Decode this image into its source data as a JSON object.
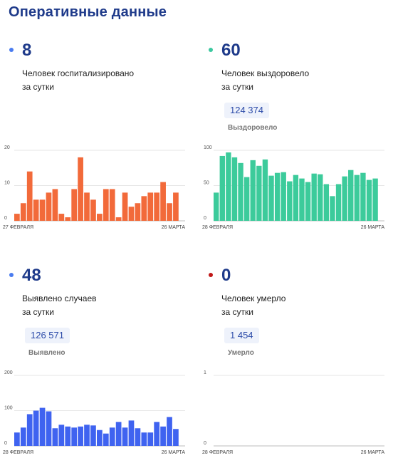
{
  "title": "Оперативные данные",
  "panels": [
    {
      "id": "hospitalized",
      "value": "8",
      "caption_line1": "Человек госпитализировано",
      "caption_line2": "за сутки",
      "dot_color": "#4a7cf0",
      "chart": {
        "type": "bar",
        "color": "#f26a3a",
        "ylim": [
          0,
          20
        ],
        "yticks": [
          "0",
          "10",
          "20"
        ],
        "ytick_values": [
          0,
          10,
          20
        ],
        "x_start_label": "27 ФЕВРАЛЯ",
        "x_end_label": "26 МАРТА",
        "values": [
          2,
          5,
          14,
          6,
          6,
          8,
          9,
          2,
          1,
          9,
          18,
          8,
          6,
          2,
          9,
          9,
          1,
          8,
          4,
          5,
          7,
          8,
          8,
          11,
          5,
          8
        ]
      }
    },
    {
      "id": "recovered",
      "value": "60",
      "caption_line1": "Человек выздоровело",
      "caption_line2": "за сутки",
      "dot_color": "#3cc8a0",
      "total": "124 374",
      "total_label": "Выздоровело",
      "chart": {
        "type": "bar",
        "color": "#3ccb9b",
        "ylim": [
          0,
          100
        ],
        "yticks": [
          "0",
          "50",
          "100"
        ],
        "ytick_values": [
          0,
          50,
          100
        ],
        "x_start_label": "28 ФЕВРАЛЯ",
        "x_end_label": "26 МАРТА",
        "values": [
          40,
          92,
          97,
          90,
          82,
          62,
          86,
          78,
          87,
          64,
          68,
          69,
          56,
          65,
          60,
          55,
          67,
          66,
          52,
          35,
          52,
          63,
          72,
          65,
          68,
          58,
          60
        ]
      }
    },
    {
      "id": "detected",
      "value": "48",
      "caption_line1": "Выявлено случаев",
      "caption_line2": "за сутки",
      "dot_color": "#4a7cf0",
      "total": "126 571",
      "total_label": "Выявлено",
      "chart": {
        "type": "bar",
        "color": "#3f63f0",
        "ylim": [
          0,
          200
        ],
        "yticks": [
          "0",
          "100",
          "200"
        ],
        "ytick_values": [
          0,
          100,
          200
        ],
        "x_start_label": "28 ФЕВРАЛЯ",
        "x_end_label": "26 МАРТА",
        "values": [
          38,
          52,
          90,
          100,
          108,
          98,
          50,
          60,
          55,
          52,
          55,
          60,
          58,
          45,
          35,
          52,
          68,
          52,
          72,
          50,
          38,
          38,
          68,
          55,
          82,
          48
        ]
      }
    },
    {
      "id": "deaths",
      "value": "0",
      "caption_line1": "Человек умерло",
      "caption_line2": "за сутки",
      "dot_color": "#c01818",
      "total": "1 454",
      "total_label": "Умерло",
      "chart": {
        "type": "bar",
        "color": "#c01818",
        "ylim": [
          0,
          1
        ],
        "yticks": [
          "0",
          "1"
        ],
        "ytick_values": [
          0,
          1
        ],
        "x_start_label": "28 ФЕВРАЛЯ",
        "x_end_label": "26 МАРТА",
        "values": []
      }
    }
  ]
}
